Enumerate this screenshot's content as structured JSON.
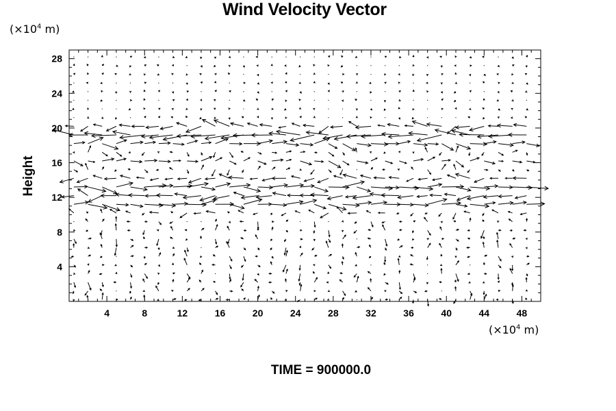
{
  "chart_data": {
    "type": "vector-field",
    "title": "Wind Velocity Vector",
    "ylabel": "Height",
    "y_unit": "(×10",
    "y_unit_exp": "4",
    "y_unit_tail": " m)",
    "x_unit": "(×10",
    "x_unit_exp": "4",
    "x_unit_tail": " m)",
    "xlim": [
      0,
      50
    ],
    "ylim": [
      0,
      29
    ],
    "xticks": [
      4,
      8,
      12,
      16,
      20,
      24,
      28,
      32,
      36,
      40,
      44,
      48
    ],
    "yticks": [
      4,
      8,
      12,
      16,
      20,
      24,
      28
    ],
    "grid": false,
    "field": {
      "x_start": 0.5,
      "x_step": 1.5,
      "x_count": 33,
      "y_start": 0.2,
      "y_step": 1.0,
      "y_count": 29,
      "jets": [
        {
          "y": 20.0,
          "u": -2.0,
          "width": 0.6
        },
        {
          "y": 19.1,
          "u": -3.2,
          "width": 0.5
        },
        {
          "y": 18.2,
          "u": 2.2,
          "width": 0.5
        },
        {
          "y": 16.2,
          "u": 1.4,
          "width": 0.7
        },
        {
          "y": 14.2,
          "u": -1.8,
          "width": 0.6
        },
        {
          "y": 13.0,
          "u": 3.5,
          "width": 0.5
        },
        {
          "y": 12.0,
          "u": -3.0,
          "width": 0.5
        },
        {
          "y": 11.0,
          "u": 3.2,
          "width": 0.5
        },
        {
          "y": 10.0,
          "u": -1.2,
          "width": 0.5
        }
      ],
      "note_vertical_low_level": true
    }
  },
  "footer": {
    "time_label": "TIME = 900000.0"
  }
}
